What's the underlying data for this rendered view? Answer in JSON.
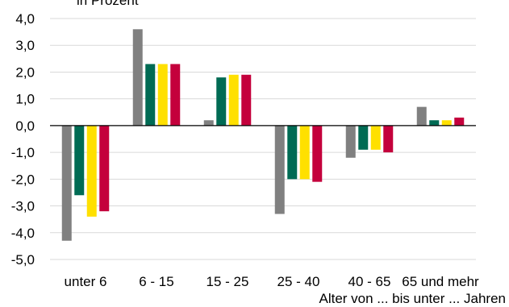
{
  "chart_data": {
    "type": "bar",
    "title": "in Prozent",
    "xlabel": "Alter von ... bis unter ... Jahren",
    "ylabel": "",
    "categories": [
      "unter 6",
      "6 - 15",
      "15 - 25",
      "25 - 40",
      "40 - 65",
      "65 und mehr"
    ],
    "ylim": [
      -5.0,
      4.0
    ],
    "yticks": [
      "4,0",
      "3,0",
      "2,0",
      "1,0",
      "0,0",
      "-1,0",
      "-2,0",
      "-3,0",
      "-4,0",
      "-5,0"
    ],
    "ytick_values": [
      4,
      3,
      2,
      1,
      0,
      -1,
      -2,
      -3,
      -4,
      -5
    ],
    "grid": true,
    "legend": "none",
    "series": [
      {
        "color": "#808080",
        "values": [
          -4.3,
          3.6,
          0.2,
          -3.3,
          -1.2,
          0.7
        ]
      },
      {
        "color": "#006b54",
        "values": [
          -2.6,
          2.3,
          1.8,
          -2.0,
          -0.9,
          0.2
        ]
      },
      {
        "color": "#ffe000",
        "values": [
          -3.4,
          2.3,
          1.9,
          -2.0,
          -0.9,
          0.2
        ]
      },
      {
        "color": "#c4003c",
        "values": [
          -3.2,
          2.3,
          1.9,
          -2.1,
          -1.0,
          0.3
        ]
      }
    ]
  }
}
